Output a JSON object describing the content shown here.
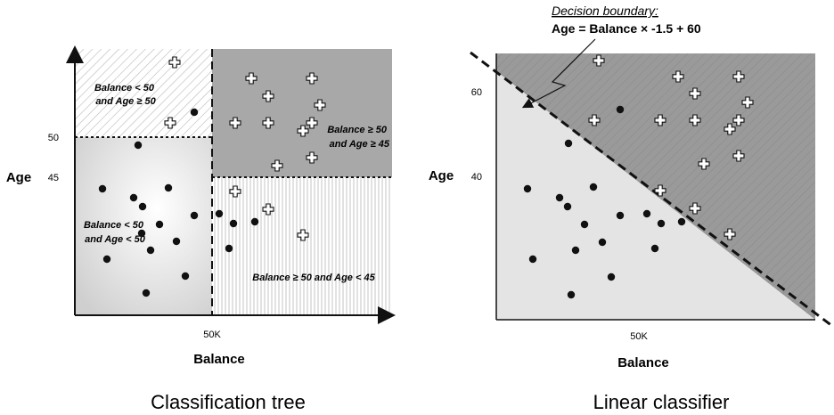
{
  "tree": {
    "caption": "Classification tree",
    "y_axis_label": "Age",
    "x_axis_label": "Balance",
    "y_ticks": [
      "50",
      "45"
    ],
    "x_tick": "50K",
    "regions": {
      "top_left": [
        "Balance < 50",
        "and Age ≥ 50"
      ],
      "top_right": [
        "Balance ≥ 50",
        "and Age ≥ 45"
      ],
      "bottom_left": [
        "Balance < 50",
        "and Age < 50"
      ],
      "bottom_right": [
        "Balance ≥ 50 and Age < 45"
      ]
    }
  },
  "linear": {
    "caption": "Linear classifier",
    "y_axis_label": "Age",
    "x_axis_label": "Balance",
    "y_ticks": [
      "60",
      "40"
    ],
    "x_tick": "50K",
    "boundary_title": "Decision boundary:",
    "boundary_equation": "Age = Balance × -1.5 +  60"
  },
  "chart_data": {
    "type": "scatter",
    "series": [
      {
        "name": "",
        "marker": "dot",
        "color": "#111111",
        "points_tree": [
          [
            155,
            163
          ],
          [
            115,
            212
          ],
          [
            150,
            222
          ],
          [
            160,
            232
          ],
          [
            189,
            211
          ],
          [
            218,
            242
          ],
          [
            179,
            252
          ],
          [
            159,
            262
          ],
          [
            198,
            271
          ],
          [
            169,
            281
          ],
          [
            120,
            291
          ],
          [
            208,
            310
          ],
          [
            164,
            329
          ],
          [
            218,
            126
          ],
          [
            246,
            240
          ],
          [
            262,
            251
          ],
          [
            286,
            249
          ],
          [
            257,
            279
          ]
        ],
        "points_linear": [
          [
            696,
            123
          ],
          [
            638,
            161
          ],
          [
            592,
            212
          ],
          [
            628,
            222
          ],
          [
            637,
            232
          ],
          [
            666,
            210
          ],
          [
            696,
            242
          ],
          [
            656,
            252
          ],
          [
            726,
            240
          ],
          [
            742,
            251
          ],
          [
            676,
            272
          ],
          [
            646,
            281
          ],
          [
            735,
            279
          ],
          [
            598,
            291
          ],
          [
            686,
            311
          ],
          [
            641,
            331
          ],
          [
            765,
            249
          ]
        ]
      },
      {
        "name": "",
        "marker": "plus",
        "color": "#ffffff",
        "points_tree": [
          [
            196,
            70
          ],
          [
            282,
            88
          ],
          [
            350,
            88
          ],
          [
            301,
            108
          ],
          [
            359,
            118
          ],
          [
            264,
            138
          ],
          [
            301,
            138
          ],
          [
            350,
            138
          ],
          [
            340,
            147
          ],
          [
            350,
            177
          ],
          [
            311,
            186
          ],
          [
            264,
            215
          ],
          [
            301,
            235
          ],
          [
            340,
            264
          ],
          [
            191,
            138
          ]
        ],
        "points_linear": [
          [
            672,
            68
          ],
          [
            761,
            86
          ],
          [
            829,
            86
          ],
          [
            780,
            105
          ],
          [
            839,
            115
          ],
          [
            741,
            135
          ],
          [
            780,
            135
          ],
          [
            829,
            135
          ],
          [
            819,
            145
          ],
          [
            829,
            175
          ],
          [
            790,
            184
          ],
          [
            741,
            214
          ],
          [
            780,
            234
          ],
          [
            819,
            263
          ],
          [
            667,
            135
          ]
        ]
      }
    ]
  }
}
